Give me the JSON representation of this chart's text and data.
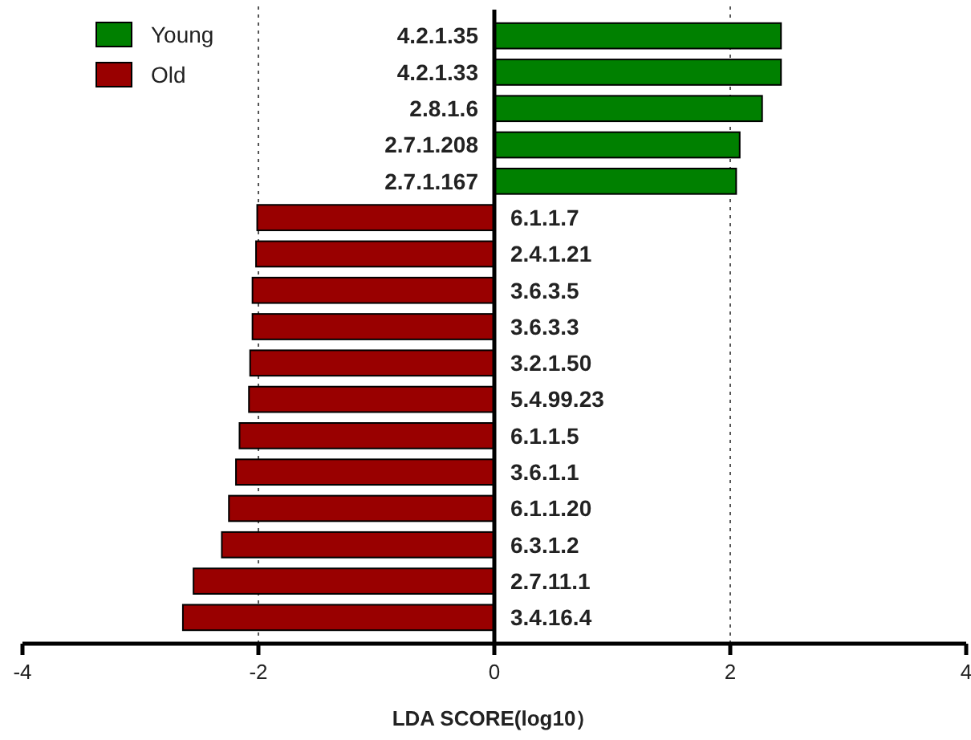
{
  "chart_data": {
    "type": "bar",
    "orientation": "horizontal",
    "xlabel": "LDA SCORE(log10）",
    "categories": [
      "4.2.1.35",
      "4.2.1.33",
      "2.8.1.6",
      "2.7.1.208",
      "2.7.1.167",
      "6.1.1.7",
      "2.4.1.21",
      "3.6.3.5",
      "3.6.3.3",
      "3.2.1.50",
      "5.4.99.23",
      "6.1.1.5",
      "3.6.1.1",
      "6.1.1.20",
      "6.3.1.2",
      "2.7.11.1",
      "3.4.16.4"
    ],
    "series": [
      {
        "name": "Young",
        "color": "#008000",
        "values": [
          2.43,
          2.43,
          2.27,
          2.08,
          2.05,
          null,
          null,
          null,
          null,
          null,
          null,
          null,
          null,
          null,
          null,
          null,
          null
        ]
      },
      {
        "name": "Old",
        "color": "#990000",
        "values": [
          null,
          null,
          null,
          null,
          null,
          -2.01,
          -2.02,
          -2.05,
          -2.05,
          -2.07,
          -2.08,
          -2.16,
          -2.19,
          -2.25,
          -2.31,
          -2.55,
          -2.64
        ]
      }
    ],
    "xlim": [
      -4,
      4
    ],
    "xticks": [
      -4,
      -2,
      0,
      2,
      4
    ],
    "ref_lines": [
      {
        "axis": "x",
        "value": -2,
        "line_style": "dotted"
      },
      {
        "axis": "x",
        "value": 2,
        "line_style": "dotted"
      }
    ],
    "legend": "top left",
    "tick_labels": "x"
  }
}
